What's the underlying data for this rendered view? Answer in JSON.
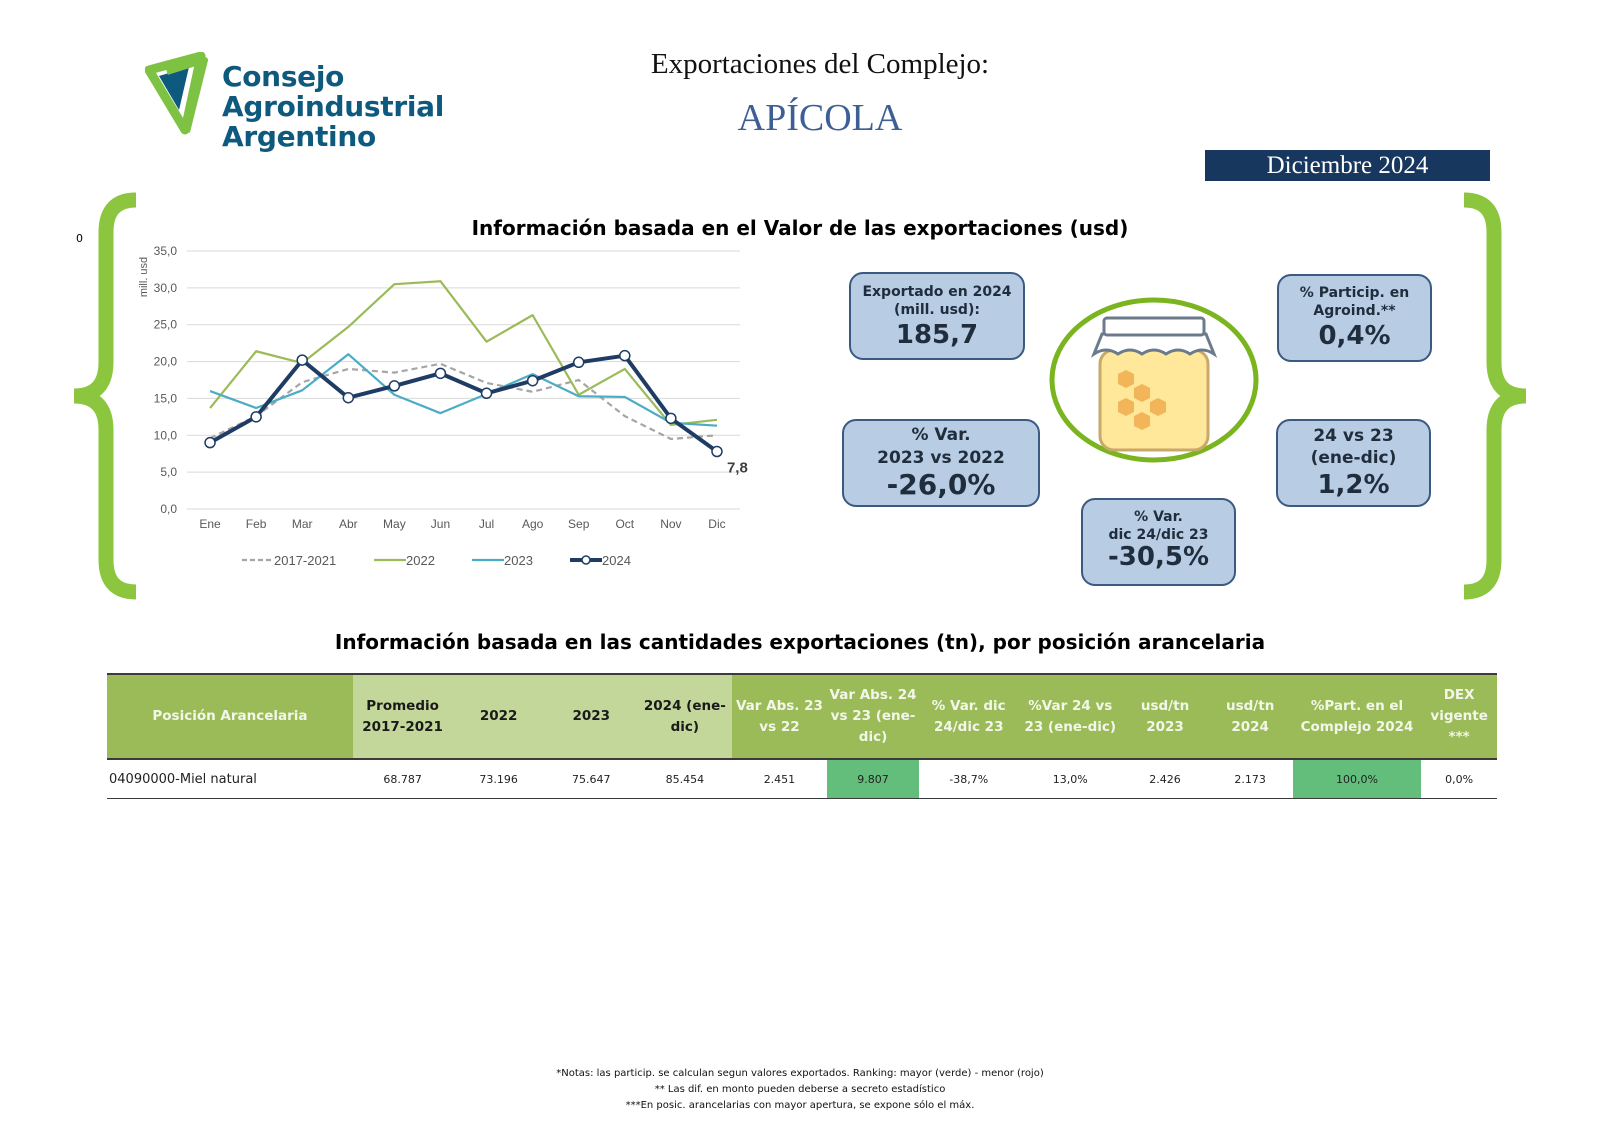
{
  "header": {
    "logo_lines": [
      "Consejo",
      "Agroindustrial",
      "Argentino"
    ],
    "title_line1": "Exportaciones del Complejo:",
    "title_line2": "APÍCOLA",
    "period": "Diciembre 2024",
    "stray_label": "0"
  },
  "section1": {
    "title": "Información basada en el Valor de las exportaciones (usd)"
  },
  "kpis": {
    "exported": {
      "label_lines": [
        "Exportado en 2024",
        "(mill. usd):"
      ],
      "value": "185,7"
    },
    "var_23_22": {
      "label_lines": [
        "% Var.",
        "2023 vs 2022"
      ],
      "value": "-26,0%"
    },
    "var_dic": {
      "label_lines": [
        "% Var.",
        "dic 24/dic 23"
      ],
      "value": "-30,5%"
    },
    "particip": {
      "label_lines": [
        "% Particip. en",
        "Agroind.**"
      ],
      "value": "0,4%"
    },
    "var_24_23": {
      "label_lines": [
        "24 vs 23",
        "(ene-dic)"
      ],
      "value": "1,2%"
    }
  },
  "chart_data": {
    "type": "line",
    "title": "",
    "xlabel": "",
    "ylabel": "mill. usd",
    "ylim": [
      0,
      35
    ],
    "yticks": [
      "0,0",
      "5,0",
      "10,0",
      "15,0",
      "20,0",
      "25,0",
      "30,0",
      "35,0"
    ],
    "ytick_values": [
      0,
      5,
      10,
      15,
      20,
      25,
      30,
      35
    ],
    "categories": [
      "Ene",
      "Feb",
      "Mar",
      "Abr",
      "May",
      "Jun",
      "Jul",
      "Ago",
      "Sep",
      "Oct",
      "Nov",
      "Dic"
    ],
    "grid": true,
    "legend_position": "bottom",
    "series": [
      {
        "name": "2017-2021",
        "color": "#a6a6a6",
        "style": "dashed",
        "values": [
          9.6,
          12.6,
          17.2,
          19.0,
          18.5,
          19.7,
          17.1,
          15.9,
          17.5,
          12.6,
          9.5,
          10.0
        ]
      },
      {
        "name": "2022",
        "color": "#9bbb59",
        "style": "solid",
        "values": [
          13.7,
          21.4,
          19.8,
          24.7,
          30.5,
          30.9,
          22.7,
          26.3,
          15.5,
          19.0,
          11.4,
          12.1
        ]
      },
      {
        "name": "2023",
        "color": "#4bacc6",
        "style": "solid",
        "values": [
          16.0,
          13.7,
          16.1,
          21.0,
          15.5,
          13.0,
          15.6,
          18.3,
          15.3,
          15.2,
          11.7,
          11.3
        ]
      },
      {
        "name": "2024",
        "color": "#1f3c64",
        "style": "solid-markers",
        "values": [
          9.0,
          12.5,
          20.2,
          15.1,
          16.7,
          18.4,
          15.7,
          17.4,
          19.9,
          20.8,
          12.3,
          7.8
        ]
      }
    ],
    "annotations": [
      {
        "series": "2024",
        "category": "Dic",
        "text": "7,8"
      }
    ]
  },
  "section2": {
    "title": "Información basada en las cantidades exportaciones (tn), por posición arancelaria",
    "columns": [
      {
        "label": "Posición Arancelaria",
        "style": "dark"
      },
      {
        "label": "Promedio 2017-2021",
        "style": "light"
      },
      {
        "label": "2022",
        "style": "light"
      },
      {
        "label": "2023",
        "style": "light"
      },
      {
        "label": "2024 (ene-dic)",
        "style": "light"
      },
      {
        "label": "Var Abs. 23 vs 22",
        "style": "dark"
      },
      {
        "label": "Var Abs. 24 vs 23 (ene-dic)",
        "style": "dark"
      },
      {
        "label": "% Var. dic 24/dic 23",
        "style": "dark"
      },
      {
        "label": "%Var 24 vs 23 (ene-dic)",
        "style": "dark"
      },
      {
        "label": "usd/tn 2023",
        "style": "dark"
      },
      {
        "label": "usd/tn 2024",
        "style": "dark"
      },
      {
        "label": "%Part. en el Complejo 2024",
        "style": "dark"
      },
      {
        "label": "DEX vigente ***",
        "style": "dark"
      }
    ],
    "rows": [
      [
        "04090000-Miel natural",
        "68.787",
        "73.196",
        "75.647",
        "85.454",
        "2.451",
        "9.807",
        "-38,7%",
        "13,0%",
        "2.426",
        "2.173",
        "100,0%",
        "0,0%"
      ]
    ],
    "highlight_color": "#63be7b"
  },
  "notes": [
    "*Notas: las particip. se calculan segun valores exportados. Ranking: mayor (verde) - menor (rojo)",
    "** Las dif. en monto pueden deberse a secreto estadístico",
    "***En posic. arancelarias con mayor apertura, se expone sólo el máx."
  ]
}
